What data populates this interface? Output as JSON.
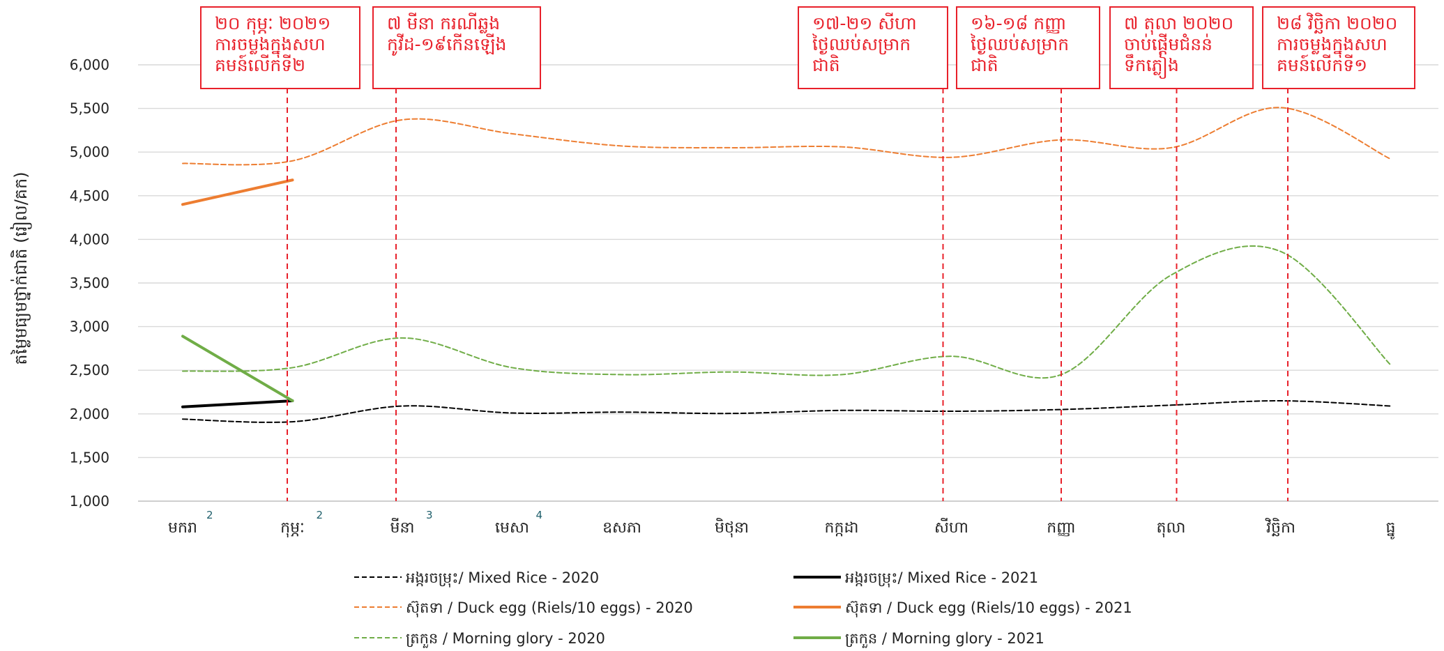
{
  "chart_data": {
    "type": "line",
    "ylabel": "តម្លៃមធ្យមថ្នាក់ជាតិ (រៀល/គក)",
    "ylim": [
      1000,
      6000
    ],
    "yticks": [
      1000,
      1500,
      2000,
      2500,
      3000,
      3500,
      4000,
      4500,
      5000,
      5500,
      6000
    ],
    "ytick_labels": [
      "1,000",
      "1,500",
      "2,000",
      "2,500",
      "3,000",
      "3,500",
      "4,000",
      "4,500",
      "5,000",
      "5,500",
      "6,000"
    ],
    "categories": [
      "មករា",
      "កុម្ភៈ",
      "មីនា",
      "មេសា",
      "ឧសភា",
      "មិថុនា",
      "កក្កដា",
      "សីហា",
      "កញ្ញា",
      "តុលា",
      "វិច្ឆិកា",
      "ធ្នូ"
    ],
    "superscripts": [
      "2",
      "2",
      "3",
      "4",
      "",
      "",
      "",
      "",
      "",
      "",
      "",
      ""
    ],
    "grid": true,
    "legend_position": "bottom",
    "series": [
      {
        "name": "អង្ករចម្រុះ/ Mixed Rice - 2020",
        "color": "#000000",
        "dashed": true,
        "values": [
          1940,
          1910,
          2090,
          2010,
          2020,
          2005,
          2040,
          2030,
          2050,
          2100,
          2150,
          2090
        ]
      },
      {
        "name": "អង្ករចម្រុះ/ Mixed Rice - 2021",
        "color": "#000000",
        "dashed": false,
        "values": [
          2080,
          2150,
          null,
          null,
          null,
          null,
          null,
          null,
          null,
          null,
          null,
          null
        ]
      },
      {
        "name": "ស៊ុតទា / Duck egg (Riels/10 eggs) - 2020",
        "color": "#ed7d31",
        "dashed": true,
        "values": [
          4870,
          4900,
          5370,
          5210,
          5070,
          5050,
          5060,
          4940,
          5140,
          5050,
          5510,
          4920
        ]
      },
      {
        "name": "ស៊ុតទា / Duck egg (Riels/10 eggs) - 2021",
        "color": "#ed7d31",
        "dashed": false,
        "values": [
          4400,
          4680,
          null,
          null,
          null,
          null,
          null,
          null,
          null,
          null,
          null,
          null
        ]
      },
      {
        "name": "ត្រកួន / Morning glory - 2020",
        "color": "#70ad47",
        "dashed": true,
        "values": [
          2490,
          2530,
          2870,
          2530,
          2450,
          2480,
          2450,
          2660,
          2450,
          3590,
          3860,
          2560
        ]
      },
      {
        "name": "ត្រកួន / Morning glory - 2021",
        "color": "#70ad47",
        "dashed": false,
        "values": [
          2890,
          2150,
          null,
          null,
          null,
          null,
          null,
          null,
          null,
          null,
          null,
          null
        ]
      }
    ],
    "annotations": [
      {
        "x_index": 1,
        "lines": [
          "២០ កុម្ភៈ ២០២១",
          "ការចម្លងក្នុងសហ",
          "គមន៍លើកទី២"
        ]
      },
      {
        "x_index": 2,
        "lines": [
          "៧ មីនា ករណីឆ្លង",
          "កូវីដ-១៩កើនឡើង"
        ]
      },
      {
        "x_index": 7,
        "lines": [
          "១៧-២១ សីហា",
          "ថ្ងៃឈប់សម្រាក",
          "ជាតិ"
        ]
      },
      {
        "x_index": 8,
        "lines": [
          "១៦-១៨ កញ្ញា",
          "ថ្ងៃឈប់សម្រាក",
          "ជាតិ"
        ]
      },
      {
        "x_index": 9,
        "lines": [
          "៧ តុលា ២០២០",
          "ចាប់ផ្តើមជំនន់",
          "ទឹកភ្លៀង"
        ]
      },
      {
        "x_index": 10,
        "lines": [
          "២៨ វិច្ឆិកា ២០២០",
          "ការចម្លងក្នុងសហ",
          "គមន៍លើកទី១"
        ]
      }
    ]
  }
}
